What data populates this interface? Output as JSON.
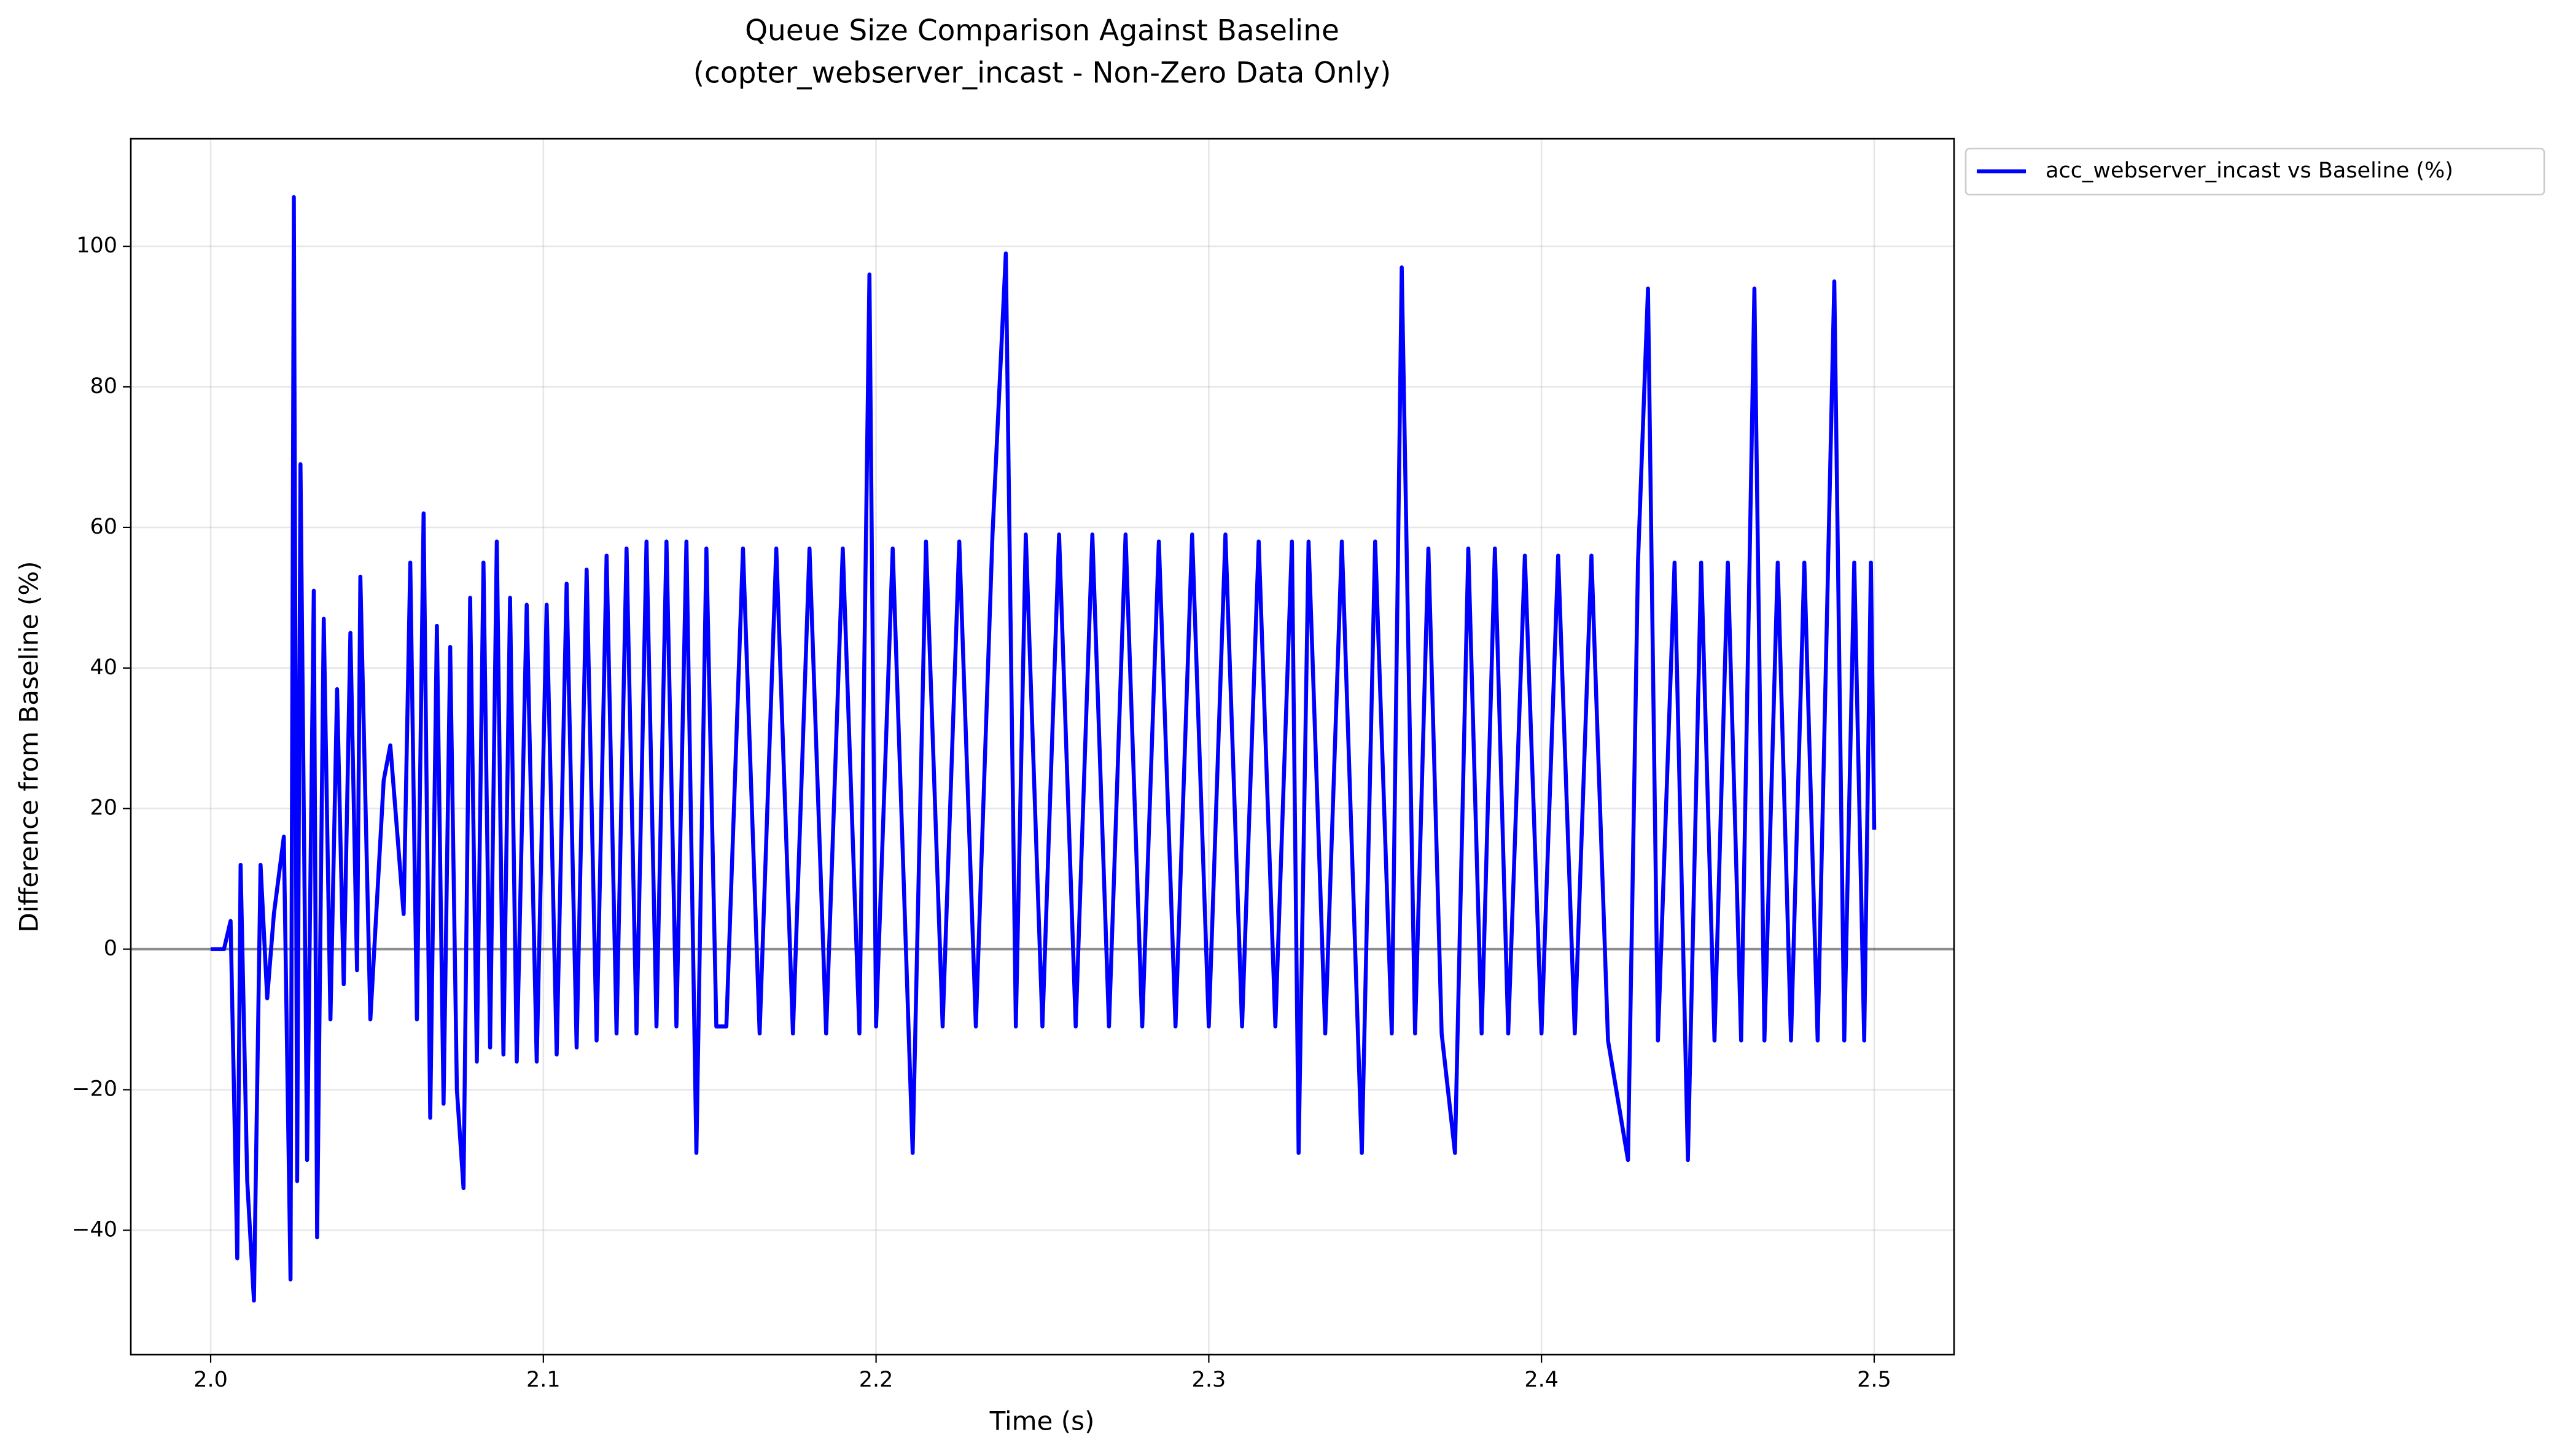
{
  "chart_data": {
    "type": "line",
    "title": "Queue Size Comparison Against Baseline",
    "subtitle": "(copter_webserver_incast - Non-Zero Data Only)",
    "x_label": "Time (s)",
    "y_label": "Difference from Baseline (%)",
    "x": [
      2.0,
      2.004,
      2.006,
      2.008,
      2.009,
      2.011,
      2.013,
      2.015,
      2.017,
      2.019,
      2.022,
      2.024,
      2.025,
      2.026,
      2.027,
      2.029,
      2.031,
      2.032,
      2.034,
      2.036,
      2.038,
      2.04,
      2.042,
      2.044,
      2.045,
      2.048,
      2.052,
      2.054,
      2.058,
      2.06,
      2.062,
      2.064,
      2.066,
      2.068,
      2.07,
      2.072,
      2.074,
      2.076,
      2.078,
      2.08,
      2.082,
      2.084,
      2.086,
      2.088,
      2.09,
      2.092,
      2.095,
      2.098,
      2.101,
      2.104,
      2.107,
      2.11,
      2.113,
      2.116,
      2.119,
      2.122,
      2.125,
      2.128,
      2.131,
      2.134,
      2.137,
      2.14,
      2.143,
      2.146,
      2.149,
      2.152,
      2.155,
      2.16,
      2.165,
      2.17,
      2.175,
      2.18,
      2.185,
      2.19,
      2.195,
      2.198,
      2.2,
      2.205,
      2.211,
      2.215,
      2.22,
      2.225,
      2.23,
      2.235,
      2.239,
      2.242,
      2.245,
      2.25,
      2.255,
      2.26,
      2.265,
      2.27,
      2.275,
      2.28,
      2.285,
      2.29,
      2.295,
      2.3,
      2.305,
      2.31,
      2.315,
      2.32,
      2.325,
      2.327,
      2.33,
      2.335,
      2.34,
      2.346,
      2.35,
      2.355,
      2.358,
      2.362,
      2.366,
      2.37,
      2.374,
      2.378,
      2.382,
      2.386,
      2.39,
      2.395,
      2.4,
      2.405,
      2.41,
      2.415,
      2.42,
      2.426,
      2.429,
      2.432,
      2.435,
      2.44,
      2.444,
      2.448,
      2.452,
      2.456,
      2.46,
      2.464,
      2.467,
      2.471,
      2.475,
      2.479,
      2.483,
      2.488,
      2.491,
      2.494,
      2.497,
      2.499,
      2.5
    ],
    "series": [
      {
        "name": "acc_webserver_incast vs Baseline (%)",
        "color": "#0000ff",
        "values": [
          0,
          0,
          4,
          -44,
          12,
          -33,
          -50,
          12,
          -7,
          5,
          16,
          -47,
          107,
          -33,
          69,
          -30,
          51,
          -41,
          47,
          -10,
          37,
          -5,
          45,
          -3,
          53,
          -10,
          24,
          29,
          5,
          55,
          -10,
          62,
          -24,
          46,
          -22,
          43,
          -20,
          -34,
          50,
          -16,
          55,
          -14,
          58,
          -15,
          50,
          -16,
          49,
          -16,
          49,
          -15,
          52,
          -14,
          54,
          -13,
          56,
          -12,
          57,
          -12,
          58,
          -11,
          58,
          -11,
          58,
          -29,
          57,
          -11,
          -11,
          57,
          -12,
          57,
          -12,
          57,
          -12,
          57,
          -12,
          96,
          -11,
          57,
          -29,
          58,
          -11,
          58,
          -11,
          59,
          99,
          -11,
          59,
          -11,
          59,
          -11,
          59,
          -11,
          59,
          -11,
          58,
          -11,
          59,
          -11,
          59,
          -11,
          58,
          -11,
          58,
          -29,
          58,
          -12,
          58,
          -29,
          58,
          -12,
          97,
          -12,
          57,
          -12,
          -29,
          57,
          -12,
          57,
          -12,
          56,
          -12,
          56,
          -12,
          56,
          -13,
          -30,
          55,
          94,
          -13,
          55,
          -30,
          55,
          -13,
          55,
          -13,
          94,
          -13,
          55,
          -13,
          55,
          -13,
          95,
          -13,
          55,
          -13,
          55,
          17
        ]
      }
    ],
    "reference_line": 0,
    "xlim": [
      1.976,
      2.524
    ],
    "ylim": [
      -57.7,
      115.3
    ],
    "xticks": [
      {
        "value": 2,
        "label": "2.0"
      },
      2.1,
      2.2,
      2.3,
      2.4,
      2.5
    ],
    "yticks": [
      {
        "value": -40,
        "label": "−40"
      },
      {
        "value": -20,
        "label": "−20"
      },
      0,
      20,
      40,
      60,
      80,
      100
    ],
    "grid": true,
    "legend": "outside-upper-right"
  }
}
